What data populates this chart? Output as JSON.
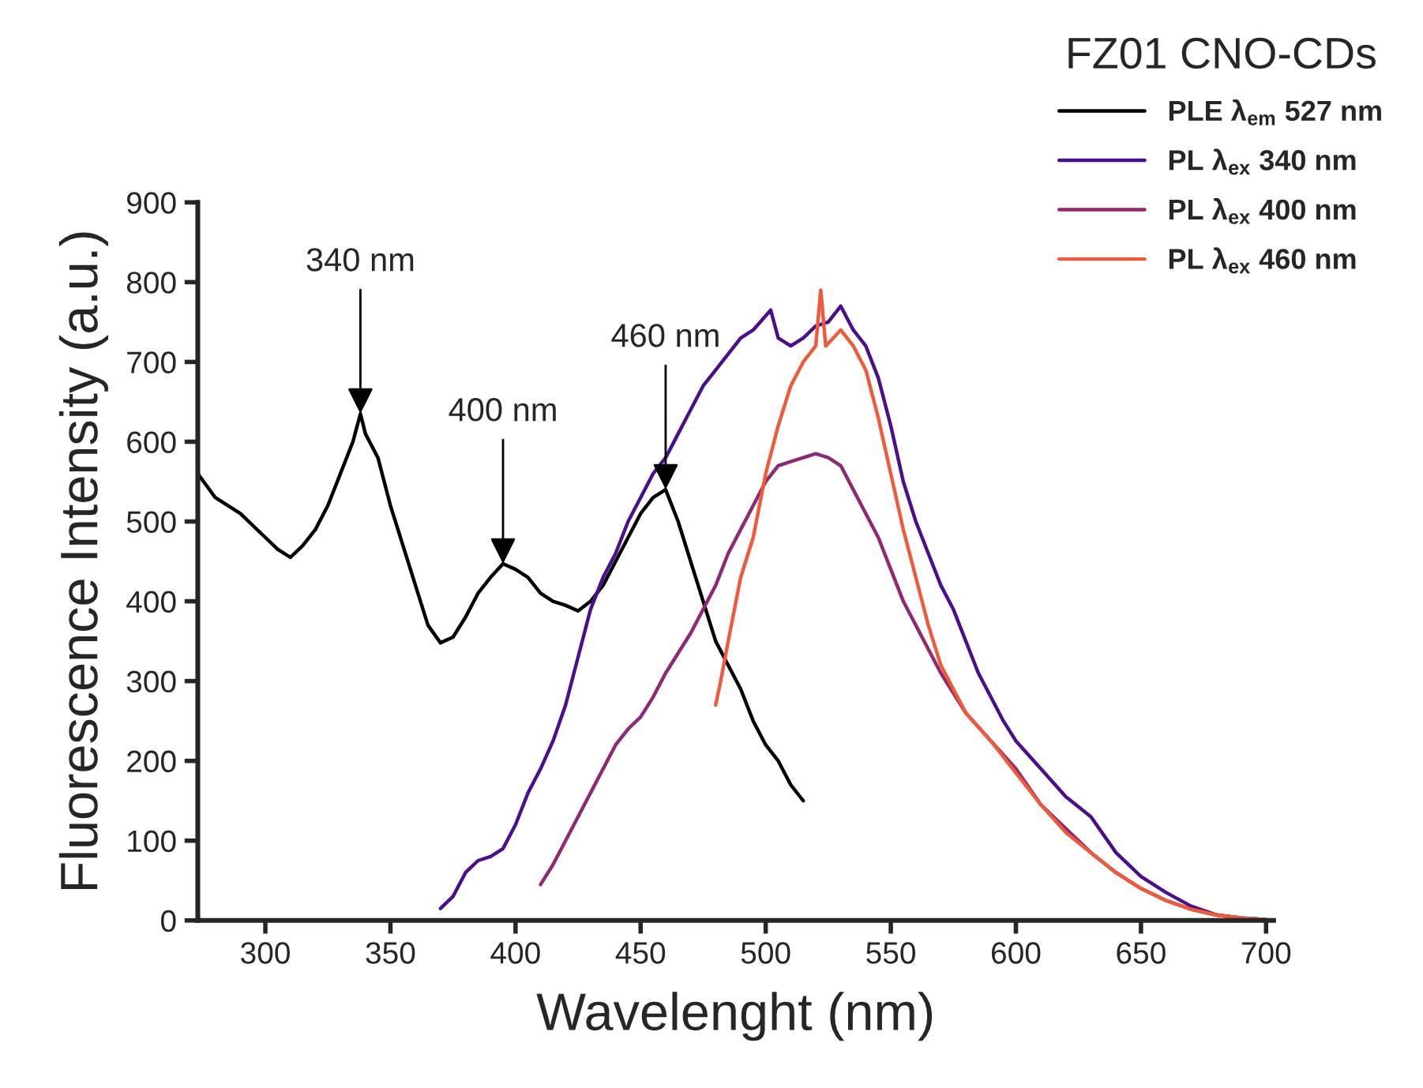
{
  "chart_data": {
    "type": "line",
    "xlabel": "Wavelenght (nm)",
    "ylabel": "Fluorescence Intensity (a.u.)",
    "legend_title": "FZ01 CNO-CDs",
    "xlim": [
      273,
      703
    ],
    "ylim": [
      0,
      900
    ],
    "xticks": [
      300,
      350,
      400,
      450,
      500,
      550,
      600,
      650,
      700
    ],
    "yticks": [
      0,
      100,
      200,
      300,
      400,
      500,
      600,
      700,
      800,
      900
    ],
    "grid": false,
    "legend": "top right",
    "marker": "none",
    "line_style": "solid",
    "annotations": [
      {
        "text": "340 nm",
        "x": 338,
        "y": 635
      },
      {
        "text": "400 nm",
        "x": 395,
        "y": 447
      },
      {
        "text": "460 nm",
        "x": 460,
        "y": 540
      }
    ],
    "series": [
      {
        "name": "PLE λ$_{em}$ 527 nm",
        "color": "#000000",
        "x": [
          273,
          280,
          290,
          300,
          305,
          310,
          315,
          320,
          325,
          330,
          335,
          338,
          340,
          345,
          350,
          355,
          360,
          365,
          370,
          375,
          380,
          385,
          390,
          395,
          400,
          405,
          410,
          415,
          420,
          425,
          430,
          435,
          440,
          445,
          450,
          455,
          460,
          465,
          470,
          475,
          480,
          485,
          490,
          495,
          500,
          505,
          510,
          515
        ],
        "values": [
          560,
          530,
          510,
          480,
          465,
          455,
          470,
          490,
          520,
          560,
          600,
          635,
          610,
          580,
          520,
          470,
          420,
          370,
          348,
          355,
          380,
          410,
          430,
          447,
          440,
          430,
          410,
          400,
          395,
          388,
          400,
          420,
          450,
          480,
          510,
          530,
          540,
          500,
          450,
          400,
          350,
          320,
          290,
          250,
          220,
          200,
          170,
          150
        ]
      },
      {
        "name": "PL λ$_{ex}$ 340 nm",
        "color": "#4b0f8c",
        "x": [
          370,
          375,
          380,
          385,
          390,
          395,
          400,
          405,
          410,
          415,
          420,
          425,
          430,
          435,
          440,
          445,
          450,
          455,
          460,
          465,
          470,
          475,
          480,
          485,
          490,
          495,
          502,
          505,
          510,
          515,
          520,
          525,
          530,
          535,
          540,
          545,
          550,
          555,
          560,
          565,
          570,
          575,
          580,
          585,
          590,
          595,
          600,
          610,
          620,
          630,
          640,
          650,
          660,
          670,
          680,
          690,
          700
        ],
        "values": [
          15,
          30,
          60,
          75,
          80,
          90,
          120,
          160,
          190,
          225,
          270,
          330,
          390,
          430,
          460,
          500,
          530,
          560,
          580,
          610,
          640,
          670,
          690,
          710,
          730,
          740,
          765,
          730,
          720,
          730,
          745,
          750,
          770,
          740,
          720,
          680,
          620,
          550,
          500,
          460,
          420,
          390,
          350,
          310,
          280,
          250,
          225,
          190,
          155,
          130,
          85,
          55,
          35,
          18,
          7,
          3,
          1
        ]
      },
      {
        "name": "PL λ$_{ex}$ 400 nm",
        "color": "#8e2a73",
        "x": [
          410,
          415,
          420,
          425,
          430,
          435,
          440,
          445,
          450,
          455,
          460,
          470,
          475,
          480,
          485,
          490,
          495,
          500,
          505,
          510,
          515,
          520,
          525,
          530,
          535,
          540,
          545,
          550,
          555,
          560,
          565,
          570,
          575,
          580,
          590,
          600,
          610,
          620,
          630,
          640,
          650,
          660,
          670,
          680,
          690,
          700
        ],
        "values": [
          45,
          70,
          100,
          130,
          160,
          190,
          220,
          240,
          255,
          280,
          310,
          360,
          390,
          420,
          460,
          490,
          520,
          550,
          570,
          575,
          580,
          585,
          580,
          570,
          540,
          510,
          480,
          440,
          400,
          370,
          340,
          310,
          285,
          260,
          225,
          190,
          145,
          115,
          85,
          60,
          40,
          25,
          14,
          7,
          3,
          1
        ]
      },
      {
        "name": "PL λ$_{ex}$ 460 nm",
        "color": "#ef5a3a",
        "x": [
          480,
          482,
          485,
          490,
          495,
          500,
          505,
          510,
          515,
          520,
          522,
          524,
          530,
          535,
          540,
          545,
          550,
          555,
          560,
          565,
          570,
          575,
          580,
          590,
          600,
          610,
          620,
          630,
          640,
          650,
          660,
          670,
          680,
          690,
          700
        ],
        "values": [
          270,
          300,
          350,
          430,
          480,
          560,
          620,
          670,
          700,
          720,
          790,
          720,
          740,
          720,
          690,
          630,
          560,
          490,
          430,
          370,
          320,
          290,
          260,
          225,
          185,
          145,
          110,
          85,
          60,
          40,
          25,
          14,
          7,
          3,
          1
        ]
      }
    ]
  }
}
